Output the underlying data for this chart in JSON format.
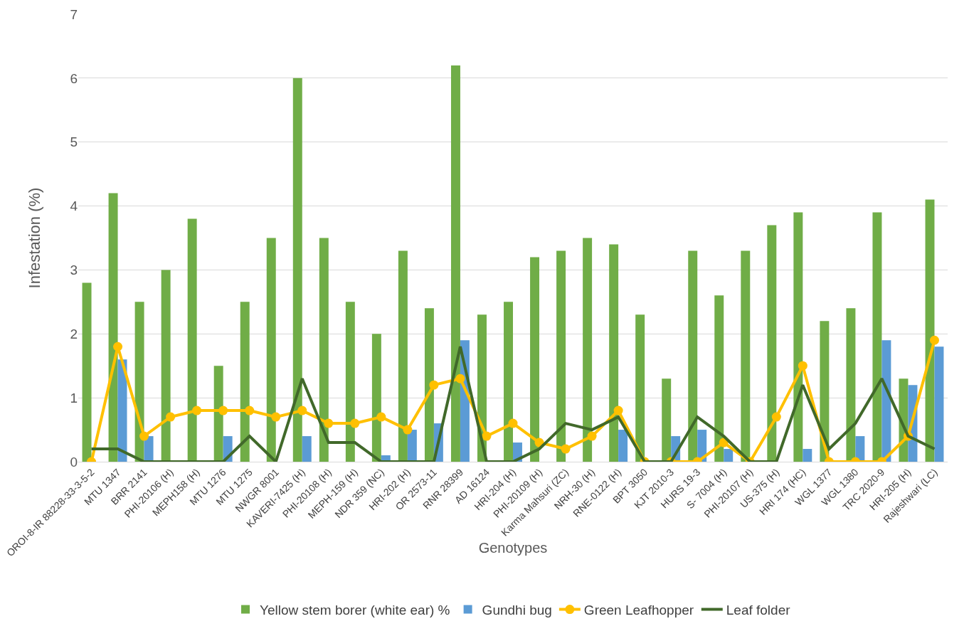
{
  "chart_data": {
    "type": "bar",
    "xlabel": "Genotypes",
    "ylabel": "Infestation (%)",
    "categories": [
      "OROI-8-IR 88228-33-3-5-2",
      "MTU 1347",
      "BRR 2141",
      "PHI-20106 (H)",
      "MEPH158 (H)",
      "MTU 1276",
      "MTU 1275",
      "NWGR 8001",
      "KAVERI-7425 (H)",
      "PHI-20108 (H)",
      "MEPH-159 (H)",
      "NDR 359 (NC)",
      "HRI-202 (H)",
      "OR 2573-11",
      "RNR 28399",
      "AD 16124",
      "HRI-204 (H)",
      "PHI-20109 (H)",
      "Karma Mahsuri (ZC)",
      "NRH-30 (H)",
      "RNE-0122 (H)",
      "BPT 3050",
      "KJT 2010-3",
      "HURS 19-3",
      "S- 7004 (H)",
      "PHI-20107 (H)",
      "US-375 (H)",
      "HRI 174 (HC)",
      "WGL 1377",
      "WGL 1380",
      "TRC 2020-9",
      "HRI-205 (H)",
      "Rajeshwari (LC)"
    ],
    "series": [
      {
        "name": "Yellow stem borer (white ear) %",
        "type": "bar",
        "color": "#70ad47",
        "values": [
          2.8,
          4.2,
          2.5,
          3.0,
          3.8,
          1.5,
          2.5,
          3.5,
          6.0,
          3.5,
          2.5,
          2.0,
          3.3,
          2.4,
          6.2,
          2.3,
          2.5,
          3.2,
          3.3,
          3.5,
          3.4,
          2.3,
          1.3,
          3.3,
          2.6,
          3.3,
          3.7,
          3.9,
          2.2,
          2.4,
          3.9,
          1.3,
          4.1
        ]
      },
      {
        "name": "Gundhi bug",
        "type": "bar",
        "color": "#5b9bd5",
        "values": [
          0,
          1.6,
          0.4,
          0,
          0,
          0.4,
          0,
          0,
          0.4,
          0,
          0,
          0.1,
          0.5,
          0.6,
          1.9,
          0,
          0.3,
          0,
          0,
          0,
          0.5,
          0,
          0.4,
          0.5,
          0.2,
          0,
          0,
          0.2,
          0,
          0.4,
          1.9,
          1.2,
          1.8
        ]
      },
      {
        "name": "Green Leafhopper",
        "type": "line",
        "marker": "circle",
        "color": "#ffc000",
        "values": [
          0,
          1.8,
          0.4,
          0.7,
          0.8,
          0.8,
          0.8,
          0.7,
          0.8,
          0.6,
          0.6,
          0.7,
          0.5,
          1.2,
          1.3,
          0.4,
          0.6,
          0.3,
          0.2,
          0.4,
          0.8,
          0,
          0,
          0,
          0.3,
          0,
          0.7,
          1.5,
          0,
          0,
          0,
          0.4,
          1.9
        ]
      },
      {
        "name": "Leaf folder",
        "type": "line",
        "marker": "none",
        "color": "#41692a",
        "values": [
          0.2,
          0.2,
          0,
          0,
          0,
          0,
          0.4,
          0,
          1.3,
          0.3,
          0.3,
          0,
          0,
          0,
          1.8,
          0,
          0,
          0.2,
          0.6,
          0.5,
          0.7,
          0,
          0,
          0.7,
          0.4,
          0,
          0,
          1.2,
          0.2,
          0.6,
          1.3,
          0.4,
          0.2
        ]
      }
    ],
    "ylim": [
      0,
      7
    ],
    "yticks": [
      0,
      1,
      2,
      3,
      4,
      5,
      6,
      7
    ],
    "grid": "y",
    "legend": "bottom",
    "line_style": "solid"
  }
}
